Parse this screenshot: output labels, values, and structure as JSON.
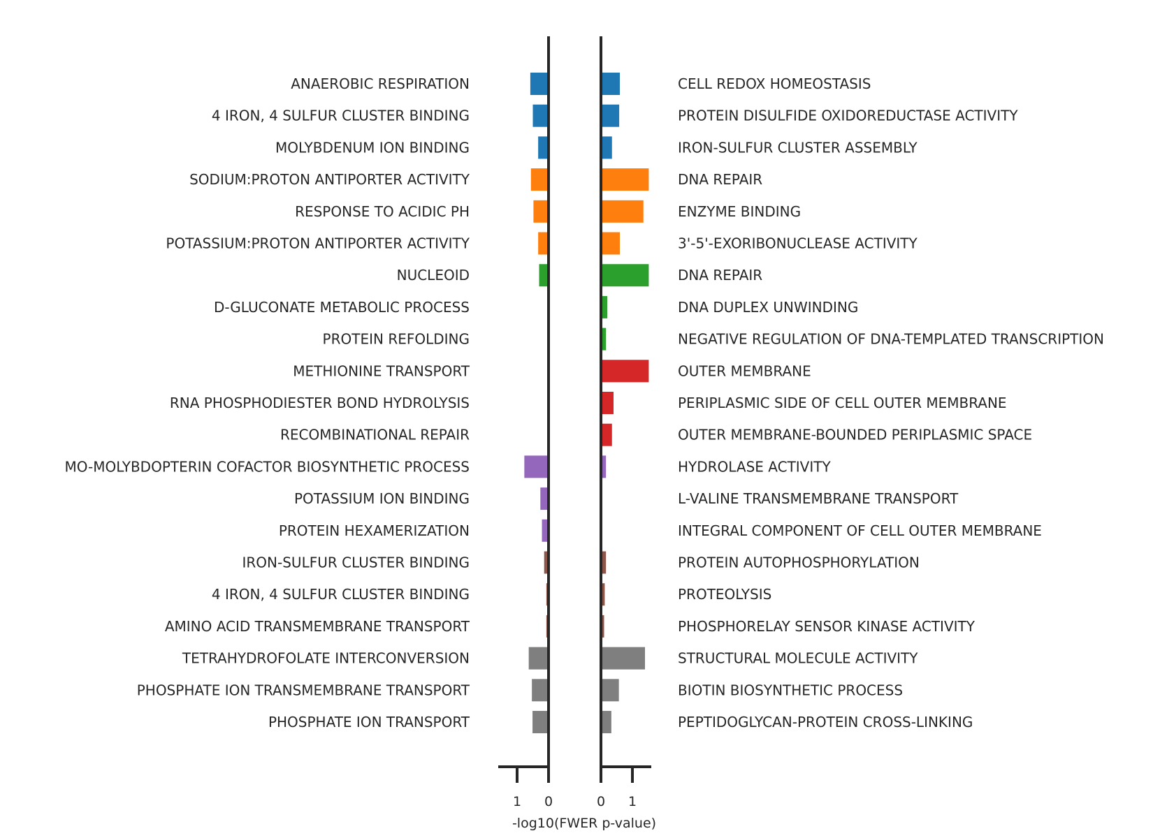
{
  "chart_data": {
    "type": "bar",
    "orientation": "horizontal-mirrored",
    "xlabel": "-log10(FWER p-value)",
    "left_panel": {
      "direction": "leftward",
      "xlim": [
        1.6,
        0
      ],
      "ticks": [
        1,
        0
      ],
      "tick_labels": [
        "1",
        "0"
      ]
    },
    "right_panel": {
      "direction": "rightward",
      "xlim": [
        0,
        1.6
      ],
      "ticks": [
        0,
        1
      ],
      "tick_labels": [
        "0",
        "1"
      ]
    },
    "groups": [
      {
        "color": "#1f77b4"
      },
      {
        "color": "#ff7f0e"
      },
      {
        "color": "#2ca02c"
      },
      {
        "color": "#d62728"
      },
      {
        "color": "#9467bd"
      },
      {
        "color": "#8c564b"
      },
      {
        "color": "#7f7f7f"
      }
    ],
    "rows": [
      {
        "group": 0,
        "left_label": "ANAEROBIC RESPIRATION",
        "left_value": 0.58,
        "right_label": "CELL REDOX HOMEOSTASIS",
        "right_value": 0.6
      },
      {
        "group": 0,
        "left_label": "4 IRON, 4 SULFUR CLUSTER BINDING",
        "left_value": 0.5,
        "right_label": "PROTEIN DISULFIDE OXIDOREDUCTASE ACTIVITY",
        "right_value": 0.58
      },
      {
        "group": 0,
        "left_label": "MOLYBDENUM ION BINDING",
        "left_value": 0.33,
        "right_label": "IRON-SULFUR CLUSTER ASSEMBLY",
        "right_value": 0.35
      },
      {
        "group": 1,
        "left_label": "SODIUM:PROTON ANTIPORTER ACTIVITY",
        "left_value": 0.56,
        "right_label": "DNA REPAIR",
        "right_value": 1.52
      },
      {
        "group": 1,
        "left_label": "RESPONSE TO ACIDIC PH",
        "left_value": 0.48,
        "right_label": "ENZYME BINDING",
        "right_value": 1.35
      },
      {
        "group": 1,
        "left_label": "POTASSIUM:PROTON ANTIPORTER ACTIVITY",
        "left_value": 0.33,
        "right_label": "3'-5'-EXORIBONUCLEASE ACTIVITY",
        "right_value": 0.6
      },
      {
        "group": 2,
        "left_label": "NUCLEOID",
        "left_value": 0.3,
        "right_label": "DNA REPAIR",
        "right_value": 1.52
      },
      {
        "group": 2,
        "left_label": "D-GLUCONATE METABOLIC PROCESS",
        "left_value": 0,
        "right_label": "DNA DUPLEX UNWINDING",
        "right_value": 0.2
      },
      {
        "group": 2,
        "left_label": "PROTEIN REFOLDING",
        "left_value": 0,
        "right_label": "NEGATIVE REGULATION OF DNA-TEMPLATED TRANSCRIPTION",
        "right_value": 0.16
      },
      {
        "group": 3,
        "left_label": "METHIONINE TRANSPORT",
        "left_value": 0,
        "right_label": "OUTER MEMBRANE",
        "right_value": 1.52
      },
      {
        "group": 3,
        "left_label": "RNA PHOSPHODIESTER BOND HYDROLYSIS",
        "left_value": 0,
        "right_label": "PERIPLASMIC SIDE OF CELL OUTER MEMBRANE",
        "right_value": 0.4
      },
      {
        "group": 3,
        "left_label": "RECOMBINATIONAL REPAIR",
        "left_value": 0,
        "right_label": "OUTER MEMBRANE-BOUNDED PERIPLASMIC SPACE",
        "right_value": 0.35
      },
      {
        "group": 4,
        "left_label": "MO-MOLYBDOPTERIN COFACTOR BIOSYNTHETIC PROCESS",
        "left_value": 0.77,
        "right_label": "HYDROLASE ACTIVITY",
        "right_value": 0.16
      },
      {
        "group": 4,
        "left_label": "POTASSIUM ION BINDING",
        "left_value": 0.26,
        "right_label": "L-VALINE TRANSMEMBRANE TRANSPORT",
        "right_value": 0
      },
      {
        "group": 4,
        "left_label": "PROTEIN HEXAMERIZATION",
        "left_value": 0.21,
        "right_label": "INTEGRAL COMPONENT OF CELL OUTER MEMBRANE",
        "right_value": 0
      },
      {
        "group": 5,
        "left_label": "IRON-SULFUR CLUSTER BINDING",
        "left_value": 0.14,
        "right_label": "PROTEIN AUTOPHOSPHORYLATION",
        "right_value": 0.16
      },
      {
        "group": 5,
        "left_label": "4 IRON, 4 SULFUR CLUSTER BINDING",
        "left_value": 0.07,
        "right_label": "PROTEOLYSIS",
        "right_value": 0.12
      },
      {
        "group": 5,
        "left_label": "AMINO ACID TRANSMEMBRANE TRANSPORT",
        "left_value": 0.07,
        "right_label": "PHOSPHORELAY SENSOR KINASE ACTIVITY",
        "right_value": 0.1
      },
      {
        "group": 6,
        "left_label": "TETRAHYDROFOLATE INTERCONVERSION",
        "left_value": 0.63,
        "right_label": "STRUCTURAL MOLECULE ACTIVITY",
        "right_value": 1.4
      },
      {
        "group": 6,
        "left_label": "PHOSPHATE ION TRANSMEMBRANE TRANSPORT",
        "left_value": 0.53,
        "right_label": "BIOTIN BIOSYNTHETIC PROCESS",
        "right_value": 0.57
      },
      {
        "group": 6,
        "left_label": "PHOSPHATE ION TRANSPORT",
        "left_value": 0.51,
        "right_label": "PEPTIDOGLYCAN-PROTEIN CROSS-LINKING",
        "right_value": 0.33
      }
    ]
  }
}
